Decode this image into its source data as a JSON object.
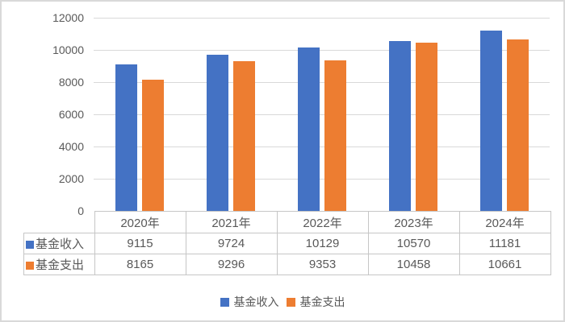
{
  "chart_data": {
    "type": "bar",
    "title": "",
    "xlabel": "",
    "ylabel": "",
    "categories": [
      "2020年",
      "2021年",
      "2022年",
      "2023年",
      "2024年"
    ],
    "series": [
      {
        "name": "基金收入",
        "color": "#4472C4",
        "values": [
          9115,
          9724,
          10129,
          10570,
          11181
        ]
      },
      {
        "name": "基金支出",
        "color": "#ED7D31",
        "values": [
          8165,
          9296,
          9353,
          10458,
          10661
        ]
      }
    ],
    "ylim": [
      0,
      12000
    ],
    "ytick_step": 2000,
    "ytick_labels": [
      "0",
      "2000",
      "4000",
      "6000",
      "8000",
      "10000",
      "12000"
    ],
    "grid": true,
    "legend_position": "bottom",
    "data_table_shown": true
  },
  "legend": {
    "items": [
      {
        "label": "基金收入",
        "color": "#4472C4"
      },
      {
        "label": "基金支出",
        "color": "#ED7D31"
      }
    ]
  },
  "colors": {
    "grid": "#D9D9D9",
    "text": "#595959",
    "table_border": "#C6C6C6",
    "frame_border": "#D9D9D9",
    "background": "#FFFFFF"
  }
}
